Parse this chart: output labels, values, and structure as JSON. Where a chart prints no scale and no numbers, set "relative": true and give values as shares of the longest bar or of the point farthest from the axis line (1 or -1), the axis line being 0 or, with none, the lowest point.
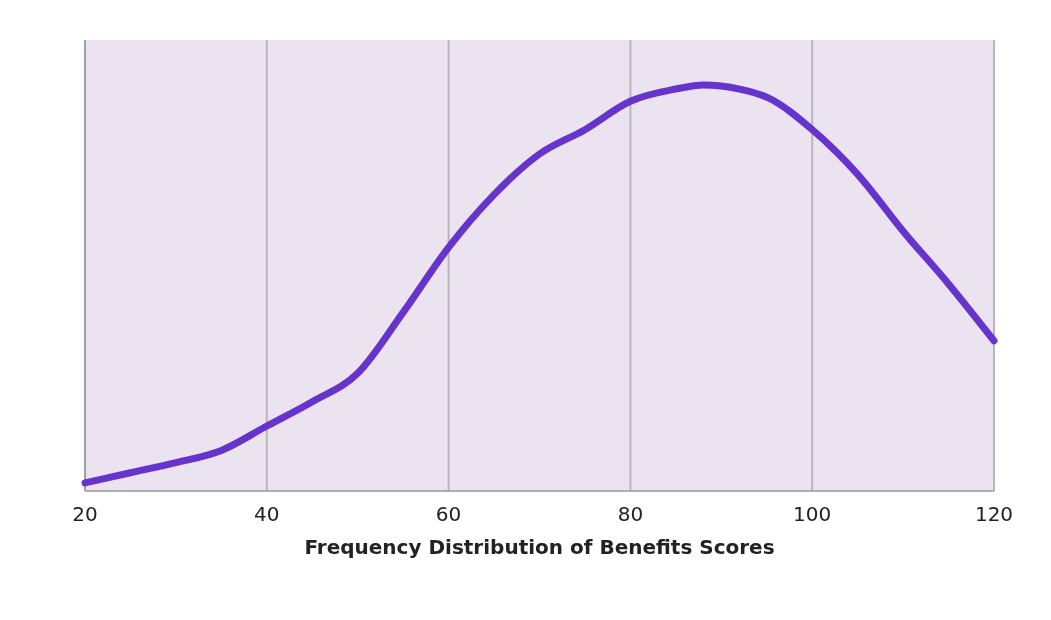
{
  "chart_data": {
    "type": "line",
    "xlabel": "Frequency Distribution of Benefits Scores",
    "relative": true,
    "xlim": [
      20,
      120
    ],
    "xticks": [
      20,
      40,
      60,
      80,
      100,
      120
    ],
    "grid": "x",
    "marker": "none",
    "line_style": "solid",
    "series": [
      {
        "color": "#6633cc",
        "x": [
          20,
          25,
          30,
          35,
          40,
          45,
          50,
          55,
          60,
          65,
          70,
          75,
          80,
          85,
          88,
          92,
          95,
          100,
          105,
          110,
          115,
          120
        ],
        "values": [
          0.02,
          0.045,
          0.07,
          0.1,
          0.16,
          0.22,
          0.29,
          0.44,
          0.6,
          0.73,
          0.83,
          0.89,
          0.96,
          0.99,
          1,
          0.99,
          0.97,
          0.89,
          0.78,
          0.64,
          0.51,
          0.37
        ]
      }
    ]
  }
}
